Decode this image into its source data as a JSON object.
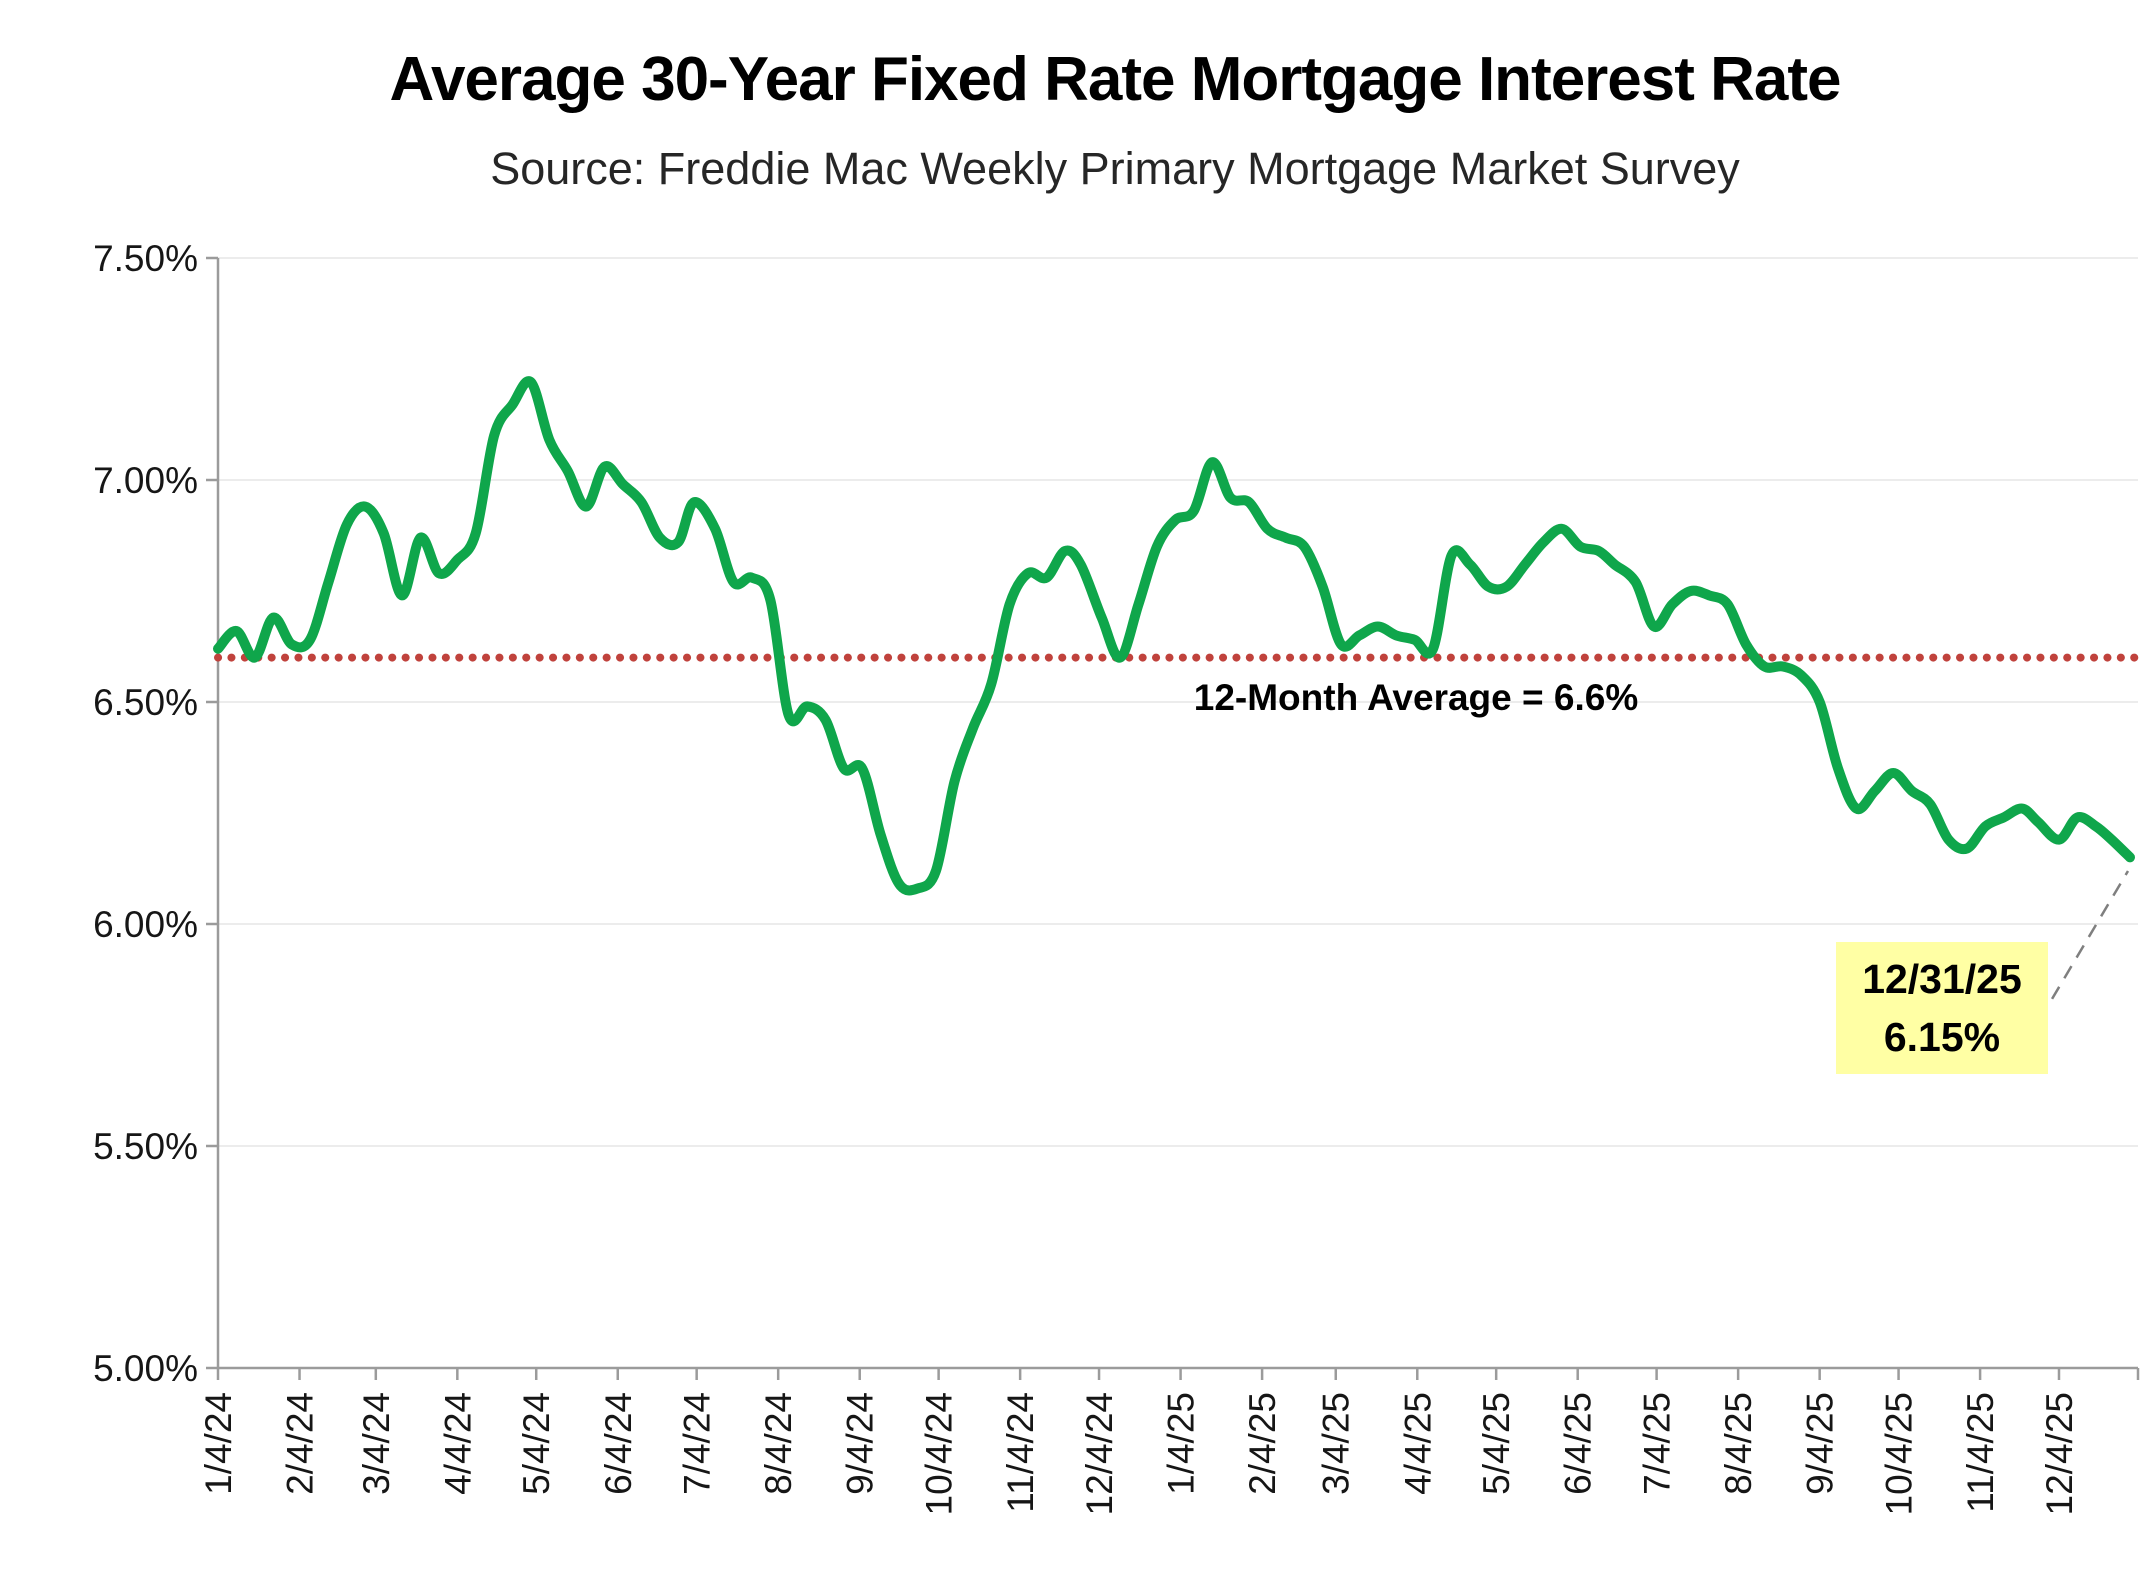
{
  "chart_data": {
    "type": "line",
    "title": "Average 30-Year Fixed Rate Mortgage Interest Rate",
    "subtitle": "Source: Freddie Mac Weekly Primary Mortgage Market Survey",
    "xlabel": "",
    "ylabel": "",
    "ylim": [
      5.0,
      7.5
    ],
    "grid": "horizontal",
    "legend_position": "none",
    "smoothed": true,
    "y_ticks": [
      {
        "label": "7.50%",
        "value": 7.5
      },
      {
        "label": "7.00%",
        "value": 7.0
      },
      {
        "label": "6.50%",
        "value": 6.5
      },
      {
        "label": "6.00%",
        "value": 6.0
      },
      {
        "label": "5.50%",
        "value": 5.5
      },
      {
        "label": "5.00%",
        "value": 5.0
      }
    ],
    "x_tick_labels": [
      "1/4/24",
      "2/4/24",
      "3/4/24",
      "4/4/24",
      "5/4/24",
      "6/4/24",
      "7/4/24",
      "8/4/24",
      "9/4/24",
      "10/4/24",
      "11/4/24",
      "12/4/24",
      "1/4/25",
      "2/4/25",
      "3/4/25",
      "4/4/25",
      "5/4/25",
      "6/4/25",
      "7/4/25",
      "8/4/25",
      "9/4/25",
      "10/4/25",
      "11/4/25",
      "12/4/25"
    ],
    "average_line": {
      "label": "12-Month Average = 6.6%",
      "value": 6.6
    },
    "annotation": {
      "date_label": "12/31/25",
      "value_label": "6.15%"
    },
    "series": [
      {
        "name": "Average 30-Year Fixed Rate Mortgage",
        "x": [
          "1/4/24",
          "1/11/24",
          "1/18/24",
          "1/25/24",
          "2/1/24",
          "2/8/24",
          "2/15/24",
          "2/22/24",
          "2/29/24",
          "3/7/24",
          "3/14/24",
          "3/21/24",
          "3/28/24",
          "4/4/24",
          "4/11/24",
          "4/18/24",
          "4/25/24",
          "5/2/24",
          "5/9/24",
          "5/16/24",
          "5/23/24",
          "5/30/24",
          "6/6/24",
          "6/13/24",
          "6/20/24",
          "6/27/24",
          "7/3/24",
          "7/11/24",
          "7/18/24",
          "7/25/24",
          "8/1/24",
          "8/8/24",
          "8/15/24",
          "8/22/24",
          "8/29/24",
          "9/5/24",
          "9/12/24",
          "9/19/24",
          "9/26/24",
          "10/3/24",
          "10/10/24",
          "10/17/24",
          "10/24/24",
          "10/31/24",
          "11/7/24",
          "11/14/24",
          "11/21/24",
          "11/27/24",
          "12/5/24",
          "12/12/24",
          "12/19/24",
          "12/26/24",
          "1/2/25",
          "1/9/25",
          "1/16/25",
          "1/23/25",
          "1/30/25",
          "2/6/25",
          "2/13/25",
          "2/20/25",
          "2/27/25",
          "3/6/25",
          "3/13/25",
          "3/20/25",
          "3/27/25",
          "4/3/25",
          "4/10/25",
          "4/17/25",
          "4/24/25",
          "5/1/25",
          "5/8/25",
          "5/15/25",
          "5/22/25",
          "5/29/25",
          "6/5/25",
          "6/12/25",
          "6/18/25",
          "6/26/25",
          "7/3/25",
          "7/10/25",
          "7/17/25",
          "7/24/25",
          "7/31/25",
          "8/7/25",
          "8/14/25",
          "8/21/25",
          "8/28/25",
          "9/4/25",
          "9/11/25",
          "9/18/25",
          "9/25/25",
          "10/2/25",
          "10/9/25",
          "10/16/25",
          "10/23/25",
          "10/30/25",
          "11/6/25",
          "11/13/25",
          "11/20/25",
          "11/26/25",
          "12/4/25",
          "12/11/25",
          "12/18/25",
          "12/24/25",
          "12/31/25"
        ],
        "values": [
          6.62,
          6.66,
          6.6,
          6.69,
          6.63,
          6.64,
          6.77,
          6.9,
          6.94,
          6.88,
          6.74,
          6.87,
          6.79,
          6.82,
          6.88,
          7.1,
          7.17,
          7.22,
          7.09,
          7.02,
          6.94,
          7.03,
          6.99,
          6.95,
          6.87,
          6.86,
          6.95,
          6.89,
          6.77,
          6.78,
          6.73,
          6.47,
          6.49,
          6.46,
          6.35,
          6.35,
          6.2,
          6.09,
          6.08,
          6.12,
          6.32,
          6.44,
          6.54,
          6.72,
          6.79,
          6.78,
          6.84,
          6.81,
          6.69,
          6.6,
          6.72,
          6.85,
          6.91,
          6.93,
          7.04,
          6.96,
          6.95,
          6.89,
          6.87,
          6.85,
          6.76,
          6.63,
          6.65,
          6.67,
          6.65,
          6.64,
          6.62,
          6.83,
          6.81,
          6.76,
          6.76,
          6.81,
          6.86,
          6.89,
          6.85,
          6.84,
          6.81,
          6.77,
          6.67,
          6.72,
          6.75,
          6.74,
          6.72,
          6.63,
          6.58,
          6.58,
          6.56,
          6.5,
          6.35,
          6.26,
          6.3,
          6.34,
          6.3,
          6.27,
          6.19,
          6.17,
          6.22,
          6.24,
          6.26,
          6.23,
          6.19,
          6.24,
          6.22,
          6.19,
          6.15
        ]
      }
    ],
    "colors": {
      "line": "#0FA64B",
      "average_line": "#C0423C",
      "annotation_bg": "#FFFFA4",
      "leader": "#7F7F7F",
      "axis": "#9B9B9B",
      "gridline": "#ECECEC",
      "tick_text": "#161616"
    }
  }
}
